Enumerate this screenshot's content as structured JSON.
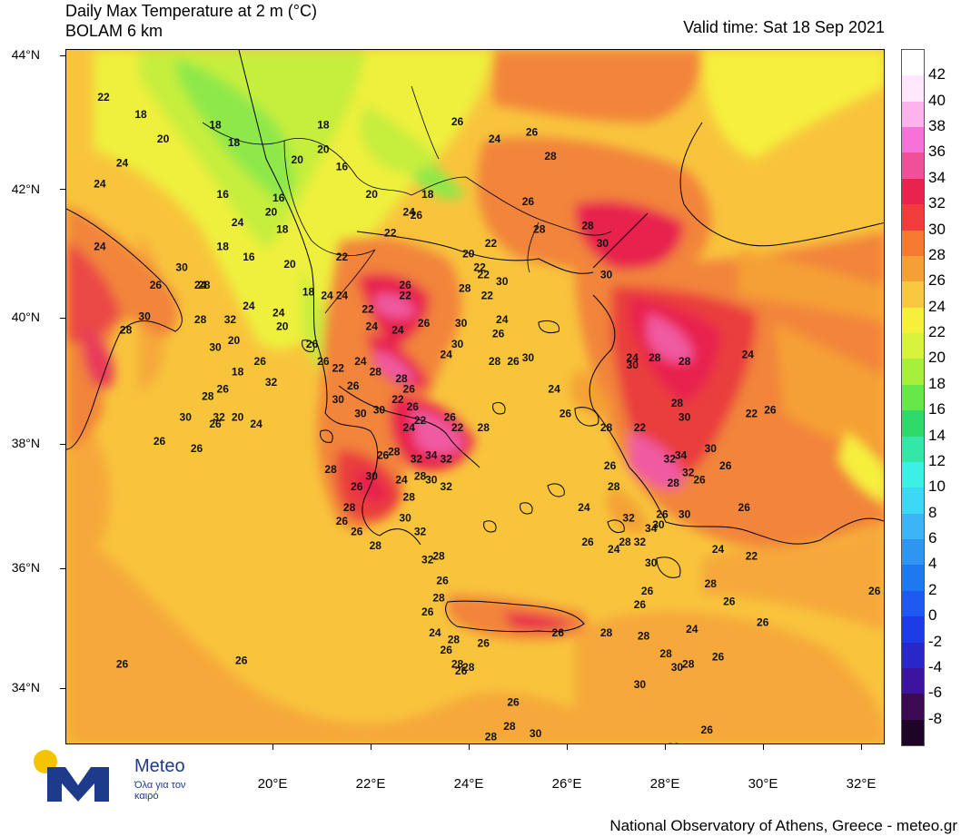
{
  "header": {
    "title_line1": "Daily Max Temperature at 2 m (°C)",
    "title_line2": "BOLAM 6 km",
    "valid_time": "Valid time: Sat 18 Sep 2021"
  },
  "footer": {
    "credit": "National Observatory of Athens, Greece - meteo.gr"
  },
  "logo": {
    "name": "Meteo",
    "tagline": "Όλα για τον καιρό"
  },
  "axes": {
    "lat_labels": [
      "44°N",
      "42°N",
      "40°N",
      "38°N",
      "36°N",
      "34°N"
    ],
    "lon_labels": [
      "20°E",
      "22°E",
      "24°E",
      "26°E",
      "28°E",
      "30°E",
      "32°E"
    ]
  },
  "colorbar": {
    "labels": [
      "42",
      "40",
      "38",
      "36",
      "34",
      "32",
      "30",
      "28",
      "26",
      "24",
      "22",
      "20",
      "18",
      "16",
      "14",
      "12",
      "10",
      "8",
      "6",
      "4",
      "2",
      "0",
      "-2",
      "-4",
      "-6",
      "-8"
    ],
    "colors": [
      "#ffffff",
      "#ffe6fa",
      "#ffb3ec",
      "#f573d9",
      "#f04f9a",
      "#e8244d",
      "#f03c3c",
      "#f57a30",
      "#f5a035",
      "#f7c840",
      "#f5f03c",
      "#d6f23c",
      "#a6f03c",
      "#66e84a",
      "#2fd96a",
      "#34e6a8",
      "#3cf0e6",
      "#3cd8f5",
      "#3cb4f5",
      "#2e96f0",
      "#1e78f0",
      "#1e5af0",
      "#1e3ce6",
      "#2828c8",
      "#3c14a0",
      "#3c0a50",
      "#1e0528"
    ]
  },
  "map_region": {
    "lat_range": [
      33,
      44
    ],
    "lon_range": [
      17,
      33
    ],
    "background_value": "26"
  },
  "contour_labels": [
    [
      "22",
      10,
      12
    ],
    [
      "18",
      20,
      17
    ],
    [
      "20",
      26,
      24
    ],
    [
      "24",
      15,
      31
    ],
    [
      "24",
      9,
      37
    ],
    [
      "24",
      9,
      55
    ],
    [
      "24",
      46,
      48
    ],
    [
      "18",
      40,
      20
    ],
    [
      "18",
      45,
      25
    ],
    [
      "16",
      42,
      40
    ],
    [
      "20",
      62,
      30
    ],
    [
      "18",
      42,
      55
    ],
    [
      "24",
      36,
      66
    ],
    [
      "20",
      55,
      45
    ],
    [
      "20",
      60,
      60
    ],
    [
      "16",
      49,
      58
    ],
    [
      "16",
      57,
      41
    ],
    [
      "18",
      58,
      50
    ],
    [
      "24",
      49,
      72
    ],
    [
      "20",
      45,
      82
    ],
    [
      "18",
      46,
      91
    ],
    [
      "26",
      66,
      83
    ],
    [
      "22",
      74,
      58
    ],
    [
      "24",
      70,
      69
    ],
    [
      "20",
      46,
      104
    ],
    [
      "24",
      51,
      106
    ],
    [
      "20",
      69,
      27
    ],
    [
      "18",
      69,
      20
    ],
    [
      "16",
      74,
      32
    ],
    [
      "20",
      82,
      40
    ],
    [
      "22",
      87,
      51
    ],
    [
      "24",
      92,
      45
    ],
    [
      "26",
      94,
      46
    ],
    [
      "26",
      105,
      19
    ],
    [
      "24",
      115,
      24
    ],
    [
      "26",
      125,
      22
    ],
    [
      "28",
      127,
      50
    ],
    [
      "28",
      130,
      29
    ],
    [
      "26",
      124,
      42
    ],
    [
      "28",
      140,
      49
    ],
    [
      "30",
      144,
      54
    ],
    [
      "30",
      145,
      63
    ],
    [
      "18",
      97,
      40
    ],
    [
      "20",
      108,
      57
    ],
    [
      "22",
      112,
      63
    ],
    [
      "22",
      113,
      69
    ],
    [
      "24",
      117,
      76
    ],
    [
      "22",
      111,
      61
    ],
    [
      "22",
      114,
      54
    ],
    [
      "28",
      107,
      67
    ],
    [
      "26",
      116,
      80
    ],
    [
      "30",
      117,
      65
    ],
    [
      "30",
      106,
      77
    ],
    [
      "24",
      102,
      86
    ],
    [
      "26",
      103,
      104
    ],
    [
      "22",
      105,
      107
    ],
    [
      "30",
      105,
      83
    ],
    [
      "28",
      112,
      107
    ],
    [
      "26",
      120,
      88
    ],
    [
      "28",
      115,
      88
    ],
    [
      "30",
      124,
      87
    ],
    [
      "24",
      131,
      96
    ],
    [
      "26",
      134,
      103
    ],
    [
      "28",
      145,
      107
    ],
    [
      "22",
      154,
      107
    ],
    [
      "24",
      152,
      87
    ],
    [
      "28",
      158,
      87
    ],
    [
      "30",
      152,
      89
    ],
    [
      "28",
      166,
      88
    ],
    [
      "24",
      183,
      86
    ],
    [
      "22",
      184,
      103
    ],
    [
      "26",
      189,
      102
    ],
    [
      "28",
      164,
      100
    ],
    [
      "30",
      166,
      104
    ],
    [
      "34",
      165,
      115
    ],
    [
      "32",
      162,
      116
    ],
    [
      "32",
      167,
      120
    ],
    [
      "28",
      163,
      123
    ],
    [
      "30",
      166,
      132
    ],
    [
      "34",
      157,
      136
    ],
    [
      "32",
      151,
      133
    ],
    [
      "30",
      159,
      135
    ],
    [
      "32",
      154,
      140
    ],
    [
      "30",
      157,
      146
    ],
    [
      "28",
      150,
      140
    ],
    [
      "24",
      147,
      142
    ],
    [
      "26",
      140,
      140
    ],
    [
      "28",
      147,
      124
    ],
    [
      "26",
      146,
      118
    ],
    [
      "24",
      139,
      130
    ],
    [
      "26",
      154,
      158
    ],
    [
      "28",
      155,
      167
    ],
    [
      "28",
      145,
      166
    ],
    [
      "28",
      161,
      172
    ],
    [
      "30",
      164,
      176
    ],
    [
      "26",
      156,
      154
    ],
    [
      "30",
      154,
      181
    ],
    [
      "28",
      167,
      175
    ],
    [
      "24",
      168,
      165
    ],
    [
      "26",
      175,
      173
    ],
    [
      "26",
      178,
      157
    ],
    [
      "28",
      173,
      152
    ],
    [
      "24",
      175,
      142
    ],
    [
      "22",
      184,
      144
    ],
    [
      "26",
      187,
      163
    ],
    [
      "26",
      182,
      130
    ],
    [
      "26",
      177,
      118
    ],
    [
      "30",
      173,
      113
    ],
    [
      "26",
      170,
      122
    ],
    [
      "26",
      160,
      132
    ],
    [
      "26",
      172,
      194
    ],
    [
      "26",
      163,
      199
    ],
    [
      "26",
      120,
      186
    ],
    [
      "28",
      119,
      193
    ],
    [
      "30",
      126,
      195
    ],
    [
      "28",
      114,
      196
    ],
    [
      "26",
      112,
      169
    ],
    [
      "26",
      106,
      177
    ],
    [
      "26",
      102,
      171
    ],
    [
      "28",
      105,
      175
    ],
    [
      "28",
      108,
      176
    ],
    [
      "28",
      104,
      168
    ],
    [
      "26",
      132,
      166
    ],
    [
      "22",
      95,
      105
    ],
    [
      "22",
      89,
      99
    ],
    [
      "26",
      93,
      101
    ],
    [
      "28",
      90,
      93
    ],
    [
      "28",
      83,
      91
    ],
    [
      "30",
      84,
      102
    ],
    [
      "28",
      88,
      114
    ],
    [
      "32",
      94,
      116
    ],
    [
      "34",
      98,
      115
    ],
    [
      "32",
      102,
      116
    ],
    [
      "28",
      95,
      121
    ],
    [
      "30",
      98,
      122
    ],
    [
      "32",
      102,
      124
    ],
    [
      "28",
      92,
      127
    ],
    [
      "30",
      91,
      133
    ],
    [
      "32",
      95,
      137
    ],
    [
      "32",
      97,
      145
    ],
    [
      "28",
      100,
      144
    ],
    [
      "26",
      101,
      151
    ],
    [
      "28",
      100,
      156
    ],
    [
      "26",
      97,
      160
    ],
    [
      "24",
      99,
      166
    ],
    [
      "28",
      83,
      141
    ],
    [
      "26",
      78,
      124
    ],
    [
      "28",
      76,
      130
    ],
    [
      "26",
      78,
      137
    ],
    [
      "30",
      82,
      121
    ],
    [
      "26",
      74,
      134
    ],
    [
      "24",
      90,
      122
    ],
    [
      "26",
      85,
      115
    ],
    [
      "24",
      92,
      107
    ],
    [
      "26",
      92,
      96
    ],
    [
      "24",
      89,
      79
    ],
    [
      "26",
      96,
      77
    ],
    [
      "22",
      81,
      73
    ],
    [
      "22",
      91,
      69
    ],
    [
      "26",
      77,
      95
    ],
    [
      "24",
      82,
      78
    ],
    [
      "22",
      73,
      90
    ],
    [
      "24",
      79,
      88
    ],
    [
      "30",
      73,
      99
    ],
    [
      "30",
      79,
      103
    ],
    [
      "28",
      71,
      119
    ],
    [
      "26",
      69,
      88
    ],
    [
      "24",
      74,
      69
    ],
    [
      "26",
      91,
      66
    ],
    [
      "24",
      57,
      74
    ],
    [
      "20",
      58,
      78
    ],
    [
      "18",
      65,
      68
    ],
    [
      "26",
      24,
      66
    ],
    [
      "30",
      31,
      61
    ],
    [
      "28",
      37,
      66
    ],
    [
      "30",
      21,
      75
    ],
    [
      "28",
      36,
      76
    ],
    [
      "32",
      44,
      76
    ],
    [
      "30",
      40,
      84
    ],
    [
      "26",
      52,
      88
    ],
    [
      "32",
      55,
      94
    ],
    [
      "26",
      42,
      96
    ],
    [
      "28",
      38,
      98
    ],
    [
      "32",
      41,
      104
    ],
    [
      "30",
      32,
      104
    ],
    [
      "26",
      25,
      111
    ],
    [
      "28",
      16,
      79
    ],
    [
      "26",
      40,
      106
    ],
    [
      "26",
      35,
      113
    ],
    [
      "26",
      47,
      174
    ],
    [
      "26",
      15,
      175
    ],
    [
      "26",
      124,
      226
    ],
    [
      "26",
      217,
      154
    ],
    [
      "26",
      207,
      218
    ],
    [
      "26",
      134,
      232
    ],
    [
      "26",
      131,
      204
    ]
  ]
}
